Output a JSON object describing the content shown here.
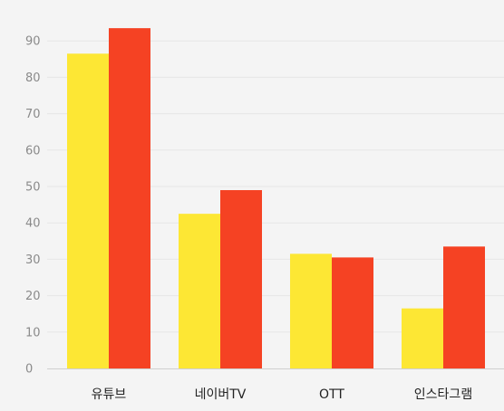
{
  "chart_data": {
    "type": "bar",
    "categories": [
      "유튜브",
      "네이버TV",
      "OTT",
      "인스타그램"
    ],
    "series": [
      {
        "values": [
          86.5,
          42.5,
          31.5,
          16.5
        ],
        "color": "#fde734"
      },
      {
        "values": [
          93.5,
          49.0,
          30.5,
          33.5
        ],
        "color": "#f54223"
      }
    ],
    "yticks": [
      0,
      10,
      20,
      30,
      40,
      50,
      60,
      70,
      80,
      90
    ],
    "ylim": [
      0,
      95
    ],
    "grid": true,
    "legend": "none",
    "title": "",
    "xlabel": "",
    "ylabel": ""
  }
}
